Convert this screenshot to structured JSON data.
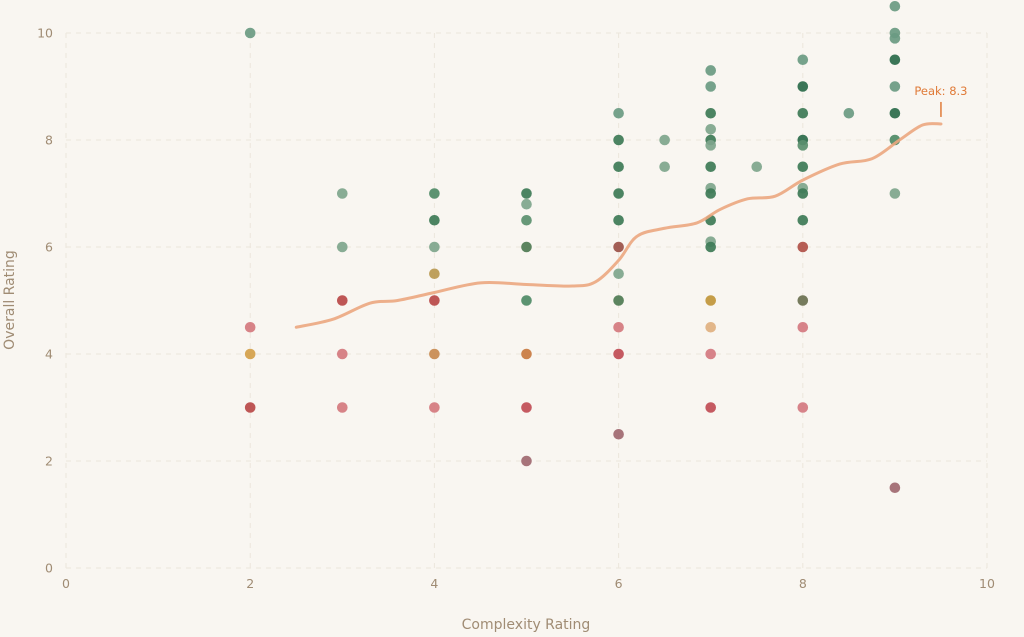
{
  "chart_data": {
    "type": "scatter",
    "title": "",
    "xlabel": "Complexity Rating",
    "ylabel": "Overall Rating",
    "xlim": [
      0,
      10
    ],
    "ylim": [
      0,
      10
    ],
    "x_ticks": [
      "0",
      "2",
      "4",
      "6",
      "8",
      "10"
    ],
    "y_ticks": [
      "0",
      "2",
      "4",
      "6",
      "8",
      "10"
    ],
    "grid": true,
    "legend": null,
    "background": "#f9f6f1",
    "points": [
      {
        "x": 2,
        "y": 10,
        "color": "#6a9a82"
      },
      {
        "x": 2,
        "y": 4.5,
        "color": "#d4787e"
      },
      {
        "x": 2,
        "y": 4,
        "color": "#d4a04a"
      },
      {
        "x": 2,
        "y": 3,
        "color": "#b84848"
      },
      {
        "x": 3,
        "y": 7,
        "color": "#7ea58c"
      },
      {
        "x": 3,
        "y": 6,
        "color": "#7ea58c"
      },
      {
        "x": 3,
        "y": 5,
        "color": "#b84848"
      },
      {
        "x": 3,
        "y": 4,
        "color": "#d4787e"
      },
      {
        "x": 3,
        "y": 3,
        "color": "#d4787e"
      },
      {
        "x": 4,
        "y": 7,
        "color": "#4e8a66"
      },
      {
        "x": 4,
        "y": 6.5,
        "color": "#3d7a56"
      },
      {
        "x": 4,
        "y": 6,
        "color": "#7ea58c"
      },
      {
        "x": 4,
        "y": 5.5,
        "color": "#b89850"
      },
      {
        "x": 4,
        "y": 5,
        "color": "#b84848"
      },
      {
        "x": 4,
        "y": 4,
        "color": "#c88a50"
      },
      {
        "x": 4,
        "y": 3,
        "color": "#d4787e"
      },
      {
        "x": 5,
        "y": 7,
        "color": "#3d7a56"
      },
      {
        "x": 5,
        "y": 6.8,
        "color": "#7ea58c"
      },
      {
        "x": 5,
        "y": 6.5,
        "color": "#5a8f6e"
      },
      {
        "x": 5,
        "y": 6,
        "color": "#4e7a52"
      },
      {
        "x": 5,
        "y": 5,
        "color": "#4e8a66"
      },
      {
        "x": 5,
        "y": 4,
        "color": "#c87a40"
      },
      {
        "x": 5,
        "y": 3,
        "color": "#c04c55"
      },
      {
        "x": 5,
        "y": 2,
        "color": "#a06870"
      },
      {
        "x": 6,
        "y": 8.5,
        "color": "#6a9a82"
      },
      {
        "x": 6,
        "y": 8,
        "color": "#3d7a56"
      },
      {
        "x": 6,
        "y": 7.5,
        "color": "#3d7a56"
      },
      {
        "x": 6,
        "y": 7,
        "color": "#3d7a56"
      },
      {
        "x": 6,
        "y": 6.5,
        "color": "#3d7a56"
      },
      {
        "x": 6,
        "y": 6,
        "color": "#9a5048"
      },
      {
        "x": 6,
        "y": 5.5,
        "color": "#7ea58c"
      },
      {
        "x": 6,
        "y": 5,
        "color": "#4e7a52"
      },
      {
        "x": 6,
        "y": 4.5,
        "color": "#d4787e"
      },
      {
        "x": 6,
        "y": 4,
        "color": "#c04c55"
      },
      {
        "x": 6,
        "y": 2.5,
        "color": "#a06870"
      },
      {
        "x": 6.5,
        "y": 8,
        "color": "#7ea58c"
      },
      {
        "x": 6.5,
        "y": 7.5,
        "color": "#7ea58c"
      },
      {
        "x": 7,
        "y": 9.3,
        "color": "#6a9a82"
      },
      {
        "x": 7,
        "y": 9,
        "color": "#6a9a82"
      },
      {
        "x": 7,
        "y": 8.5,
        "color": "#3d7a56"
      },
      {
        "x": 7,
        "y": 8.2,
        "color": "#7ea58c"
      },
      {
        "x": 7,
        "y": 8,
        "color": "#3d7a56"
      },
      {
        "x": 7,
        "y": 7.9,
        "color": "#7ea58c"
      },
      {
        "x": 7,
        "y": 7.5,
        "color": "#3d7a56"
      },
      {
        "x": 7,
        "y": 7.1,
        "color": "#7ea58c"
      },
      {
        "x": 7,
        "y": 7,
        "color": "#3d7a56"
      },
      {
        "x": 7,
        "y": 6.5,
        "color": "#3d7a56"
      },
      {
        "x": 7,
        "y": 6.1,
        "color": "#7ea58c"
      },
      {
        "x": 7,
        "y": 6,
        "color": "#3d7a56"
      },
      {
        "x": 7,
        "y": 5,
        "color": "#c0953a"
      },
      {
        "x": 7,
        "y": 4.5,
        "color": "#e0b080"
      },
      {
        "x": 7,
        "y": 4,
        "color": "#d47880"
      },
      {
        "x": 7,
        "y": 3,
        "color": "#c04c55"
      },
      {
        "x": 7.5,
        "y": 7.5,
        "color": "#7ea58c"
      },
      {
        "x": 8,
        "y": 9.5,
        "color": "#6a9a82"
      },
      {
        "x": 8,
        "y": 9,
        "color": "#2a6a4a"
      },
      {
        "x": 8,
        "y": 8.5,
        "color": "#3d7a56"
      },
      {
        "x": 8,
        "y": 8,
        "color": "#2a6a4a"
      },
      {
        "x": 8,
        "y": 7.9,
        "color": "#5a8f6e"
      },
      {
        "x": 8,
        "y": 7.5,
        "color": "#3d7a56"
      },
      {
        "x": 8,
        "y": 7.1,
        "color": "#7ea58c"
      },
      {
        "x": 8,
        "y": 7,
        "color": "#3d7a56"
      },
      {
        "x": 8,
        "y": 6.5,
        "color": "#3d7a56"
      },
      {
        "x": 8,
        "y": 6,
        "color": "#b05048"
      },
      {
        "x": 8,
        "y": 5,
        "color": "#6a7050"
      },
      {
        "x": 8,
        "y": 4.5,
        "color": "#d47880"
      },
      {
        "x": 8,
        "y": 3,
        "color": "#d47880"
      },
      {
        "x": 8.5,
        "y": 8.5,
        "color": "#6a9a82"
      },
      {
        "x": 9,
        "y": 10.5,
        "color": "#6a9a82"
      },
      {
        "x": 9,
        "y": 10,
        "color": "#6a9a82"
      },
      {
        "x": 9,
        "y": 9.9,
        "color": "#6a9a82"
      },
      {
        "x": 9,
        "y": 9.5,
        "color": "#2a6a4a"
      },
      {
        "x": 9,
        "y": 9,
        "color": "#6a9a82"
      },
      {
        "x": 9,
        "y": 8.5,
        "color": "#2a6a4a"
      },
      {
        "x": 9,
        "y": 8,
        "color": "#4e8a66"
      },
      {
        "x": 9,
        "y": 7,
        "color": "#7ea58c"
      },
      {
        "x": 9,
        "y": 1.5,
        "color": "#a06870"
      }
    ],
    "trend_line": {
      "color": "#eba77f",
      "points": [
        [
          2.5,
          4.5
        ],
        [
          2.9,
          4.65
        ],
        [
          3.3,
          4.95
        ],
        [
          3.6,
          5.0
        ],
        [
          4.0,
          5.15
        ],
        [
          4.5,
          5.33
        ],
        [
          5.0,
          5.3
        ],
        [
          5.5,
          5.27
        ],
        [
          5.75,
          5.35
        ],
        [
          6.0,
          5.75
        ],
        [
          6.2,
          6.2
        ],
        [
          6.5,
          6.35
        ],
        [
          6.85,
          6.45
        ],
        [
          7.1,
          6.7
        ],
        [
          7.4,
          6.9
        ],
        [
          7.7,
          6.95
        ],
        [
          8.0,
          7.25
        ],
        [
          8.4,
          7.55
        ],
        [
          8.75,
          7.65
        ],
        [
          9.05,
          8.0
        ],
        [
          9.3,
          8.28
        ],
        [
          9.5,
          8.3
        ]
      ]
    },
    "annotations": [
      {
        "text": "Peak: 8.3",
        "x": 9.5,
        "y": 8.3,
        "color": "#e07b39"
      }
    ]
  },
  "labels": {
    "xlabel": "Complexity Rating",
    "ylabel": "Overall Rating",
    "peak": "Peak: 8.3"
  }
}
